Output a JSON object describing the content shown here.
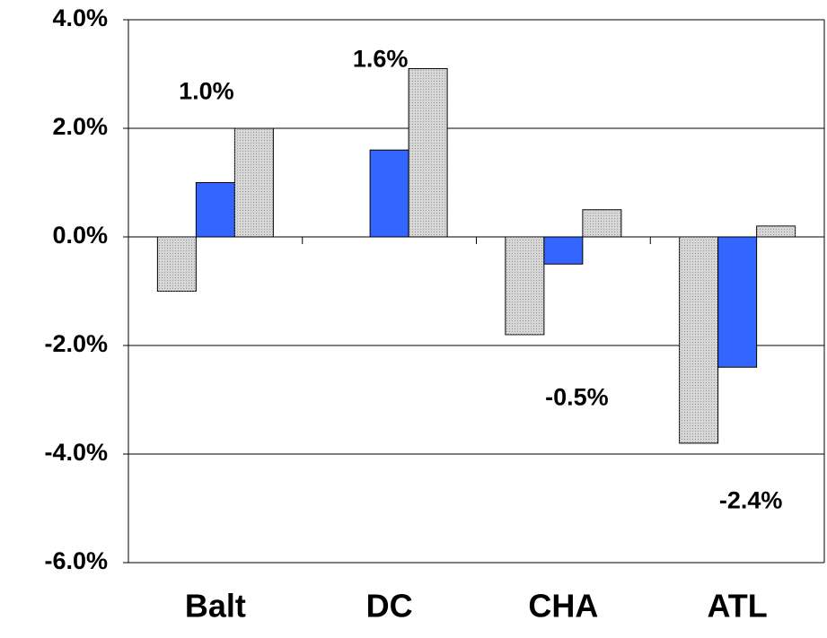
{
  "chart_data": {
    "type": "bar",
    "categories": [
      "Balt",
      "DC",
      "CHA",
      "ATL"
    ],
    "series": [
      {
        "color": "#d6d6d6",
        "values": [
          -1.0,
          null,
          -1.8,
          -3.8
        ]
      },
      {
        "color": "#3366ff",
        "values": [
          1.0,
          1.6,
          -0.5,
          -2.4
        ],
        "value_labels": [
          "1.0%",
          "1.6%",
          "-0.5%",
          "-2.4%"
        ]
      },
      {
        "color": "#d6d6d6",
        "values": [
          2.0,
          3.1,
          0.5,
          0.2
        ]
      }
    ],
    "ylim": [
      -6,
      4
    ],
    "yticks": [
      {
        "value": -6,
        "label": "-6.0%"
      },
      {
        "value": -4,
        "label": "-4.0%"
      },
      {
        "value": -2,
        "label": "-2.0%"
      },
      {
        "value": 0,
        "label": "0.0%"
      },
      {
        "value": 2,
        "label": "2.0%"
      },
      {
        "value": 4,
        "label": "4.0%"
      }
    ],
    "grid": true
  }
}
